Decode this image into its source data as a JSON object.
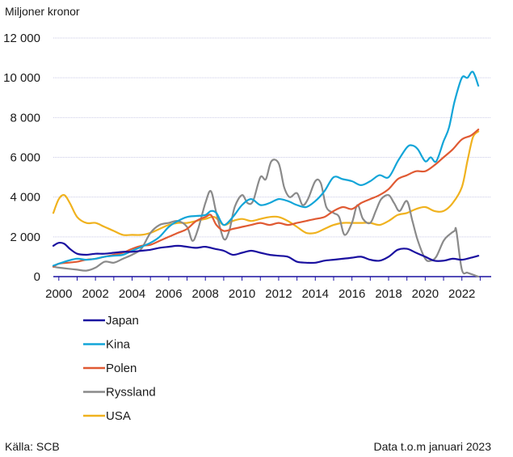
{
  "chart_data": {
    "type": "line",
    "ylabel": "Miljoner kronor",
    "source": "Källa: SCB",
    "note": "Data t.o.m januari 2023",
    "xlim": [
      1999.7,
      2023.6
    ],
    "ylim": [
      0,
      12000
    ],
    "y_ticks": [
      0,
      2000,
      4000,
      6000,
      8000,
      10000,
      12000
    ],
    "y_tick_labels": [
      "0",
      "2 000",
      "4 000",
      "6 000",
      "8 000",
      "10 000",
      "12 000"
    ],
    "x_ticks": [
      2000,
      2002,
      2004,
      2006,
      2008,
      2010,
      2012,
      2014,
      2016,
      2018,
      2020,
      2022
    ],
    "x_tick_labels": [
      "2000",
      "2002",
      "2004",
      "2006",
      "2008",
      "2010",
      "2012",
      "2014",
      "2016",
      "2018",
      "2020",
      "2022"
    ],
    "grid": "horizontal",
    "legend_position": "below",
    "series": [
      {
        "name": "Japan",
        "color": "#1a10a0",
        "x": [
          1999.7,
          2000.0,
          2000.3,
          2000.6,
          2001.0,
          2001.5,
          2002.0,
          2002.5,
          2003.0,
          2003.5,
          2004.0,
          2004.5,
          2005.0,
          2005.5,
          2006.0,
          2006.5,
          2007.0,
          2007.5,
          2008.0,
          2008.5,
          2009.0,
          2009.5,
          2010.0,
          2010.5,
          2011.0,
          2011.5,
          2012.0,
          2012.5,
          2013.0,
          2013.5,
          2014.0,
          2014.5,
          2015.0,
          2015.5,
          2016.0,
          2016.5,
          2017.0,
          2017.5,
          2018.0,
          2018.5,
          2019.0,
          2019.5,
          2020.0,
          2020.5,
          2021.0,
          2021.5,
          2022.0,
          2022.5,
          2022.9
        ],
        "values": [
          1550,
          1700,
          1650,
          1400,
          1150,
          1100,
          1150,
          1150,
          1200,
          1250,
          1250,
          1300,
          1350,
          1450,
          1500,
          1550,
          1500,
          1450,
          1500,
          1400,
          1300,
          1100,
          1200,
          1300,
          1200,
          1100,
          1050,
          1000,
          750,
          700,
          700,
          800,
          850,
          900,
          950,
          1000,
          850,
          800,
          1000,
          1350,
          1400,
          1200,
          1000,
          800,
          800,
          900,
          850,
          950,
          1050
        ]
      },
      {
        "name": "Kina",
        "color": "#12a5d8",
        "x": [
          1999.7,
          2000.0,
          2000.5,
          2001.0,
          2001.5,
          2002.0,
          2002.5,
          2003.0,
          2003.5,
          2004.0,
          2004.5,
          2005.0,
          2005.5,
          2006.0,
          2006.5,
          2007.0,
          2007.5,
          2008.0,
          2008.3,
          2008.6,
          2009.0,
          2009.5,
          2010.0,
          2010.5,
          2011.0,
          2011.5,
          2012.0,
          2012.5,
          2013.0,
          2013.5,
          2014.0,
          2014.5,
          2015.0,
          2015.5,
          2016.0,
          2016.5,
          2017.0,
          2017.5,
          2018.0,
          2018.5,
          2019.0,
          2019.3,
          2019.6,
          2020.0,
          2020.3,
          2020.6,
          2021.0,
          2021.3,
          2021.6,
          2022.0,
          2022.3,
          2022.6,
          2022.9
        ],
        "values": [
          550,
          650,
          800,
          900,
          850,
          900,
          1000,
          1050,
          1100,
          1300,
          1500,
          1700,
          2000,
          2500,
          2800,
          3000,
          3050,
          3100,
          3300,
          3200,
          2600,
          3000,
          3600,
          3900,
          3600,
          3700,
          3900,
          3800,
          3600,
          3500,
          3800,
          4300,
          5000,
          4900,
          4800,
          4600,
          4800,
          5100,
          5000,
          5800,
          6500,
          6600,
          6400,
          5800,
          6000,
          5800,
          6800,
          7500,
          8800,
          10000,
          10000,
          10300,
          9600
        ]
      },
      {
        "name": "Polen",
        "color": "#e05a33",
        "x": [
          1999.7,
          2000.0,
          2000.5,
          2001.0,
          2001.5,
          2002.0,
          2002.5,
          2003.0,
          2003.5,
          2004.0,
          2004.5,
          2005.0,
          2005.5,
          2006.0,
          2006.5,
          2007.0,
          2007.5,
          2008.0,
          2008.3,
          2008.6,
          2009.0,
          2009.5,
          2010.0,
          2010.5,
          2011.0,
          2011.5,
          2012.0,
          2012.5,
          2013.0,
          2013.5,
          2014.0,
          2014.5,
          2015.0,
          2015.5,
          2016.0,
          2016.5,
          2017.0,
          2017.5,
          2018.0,
          2018.5,
          2019.0,
          2019.5,
          2020.0,
          2020.5,
          2021.0,
          2021.5,
          2022.0,
          2022.5,
          2022.9
        ],
        "values": [
          500,
          650,
          700,
          750,
          850,
          900,
          1000,
          1100,
          1200,
          1400,
          1550,
          1600,
          1800,
          2000,
          2200,
          2400,
          2800,
          3000,
          3100,
          2600,
          2300,
          2400,
          2500,
          2600,
          2700,
          2600,
          2700,
          2600,
          2700,
          2800,
          2900,
          3000,
          3300,
          3500,
          3400,
          3700,
          3900,
          4100,
          4400,
          4900,
          5100,
          5300,
          5300,
          5600,
          6000,
          6400,
          6900,
          7100,
          7400
        ]
      },
      {
        "name": "Ryssland",
        "color": "#8a8a8a",
        "x": [
          1999.7,
          2000.0,
          2000.5,
          2001.0,
          2001.5,
          2002.0,
          2002.5,
          2003.0,
          2003.5,
          2004.0,
          2004.5,
          2005.0,
          2005.5,
          2006.0,
          2006.5,
          2007.0,
          2007.3,
          2007.6,
          2008.0,
          2008.3,
          2008.6,
          2009.0,
          2009.3,
          2009.6,
          2010.0,
          2010.3,
          2010.6,
          2011.0,
          2011.3,
          2011.6,
          2012.0,
          2012.3,
          2012.6,
          2013.0,
          2013.3,
          2013.6,
          2014.0,
          2014.3,
          2014.6,
          2015.0,
          2015.3,
          2015.6,
          2016.0,
          2016.3,
          2016.6,
          2017.0,
          2017.3,
          2017.6,
          2018.0,
          2018.3,
          2018.6,
          2019.0,
          2019.3,
          2019.6,
          2020.0,
          2020.3,
          2020.6,
          2021.0,
          2021.3,
          2021.6,
          2021.7,
          2022.0,
          2022.3,
          2022.6,
          2022.9
        ],
        "values": [
          500,
          450,
          400,
          350,
          300,
          450,
          750,
          700,
          900,
          1100,
          1400,
          2200,
          2600,
          2700,
          2800,
          2500,
          1800,
          2400,
          3700,
          4300,
          3200,
          1900,
          2300,
          3500,
          4100,
          3700,
          3800,
          5000,
          4900,
          5800,
          5700,
          4500,
          4000,
          4200,
          3600,
          3900,
          4800,
          4700,
          3500,
          3200,
          3000,
          2100,
          2700,
          3600,
          2900,
          2700,
          3300,
          3900,
          4100,
          3700,
          3300,
          3800,
          2800,
          1800,
          900,
          800,
          1000,
          1800,
          2100,
          2300,
          2300,
          350,
          200,
          100,
          0
        ]
      },
      {
        "name": "USA",
        "color": "#f0b21e",
        "x": [
          1999.7,
          2000.0,
          2000.3,
          2000.6,
          2001.0,
          2001.5,
          2002.0,
          2002.5,
          2003.0,
          2003.5,
          2004.0,
          2004.5,
          2005.0,
          2005.5,
          2006.0,
          2006.5,
          2007.0,
          2007.5,
          2008.0,
          2008.5,
          2009.0,
          2009.5,
          2010.0,
          2010.5,
          2011.0,
          2011.5,
          2012.0,
          2012.5,
          2013.0,
          2013.5,
          2014.0,
          2014.5,
          2015.0,
          2015.5,
          2016.0,
          2016.5,
          2017.0,
          2017.5,
          2018.0,
          2018.5,
          2019.0,
          2019.5,
          2020.0,
          2020.5,
          2021.0,
          2021.5,
          2022.0,
          2022.3,
          2022.6,
          2022.9
        ],
        "values": [
          3200,
          3900,
          4100,
          3700,
          3000,
          2700,
          2700,
          2500,
          2300,
          2100,
          2100,
          2100,
          2200,
          2400,
          2600,
          2700,
          2700,
          2800,
          2900,
          3000,
          2600,
          2800,
          2900,
          2800,
          2900,
          3000,
          3000,
          2800,
          2500,
          2200,
          2200,
          2400,
          2600,
          2700,
          2700,
          2700,
          2700,
          2600,
          2800,
          3100,
          3200,
          3400,
          3500,
          3300,
          3300,
          3700,
          4500,
          5800,
          7000,
          7300
        ]
      }
    ]
  }
}
